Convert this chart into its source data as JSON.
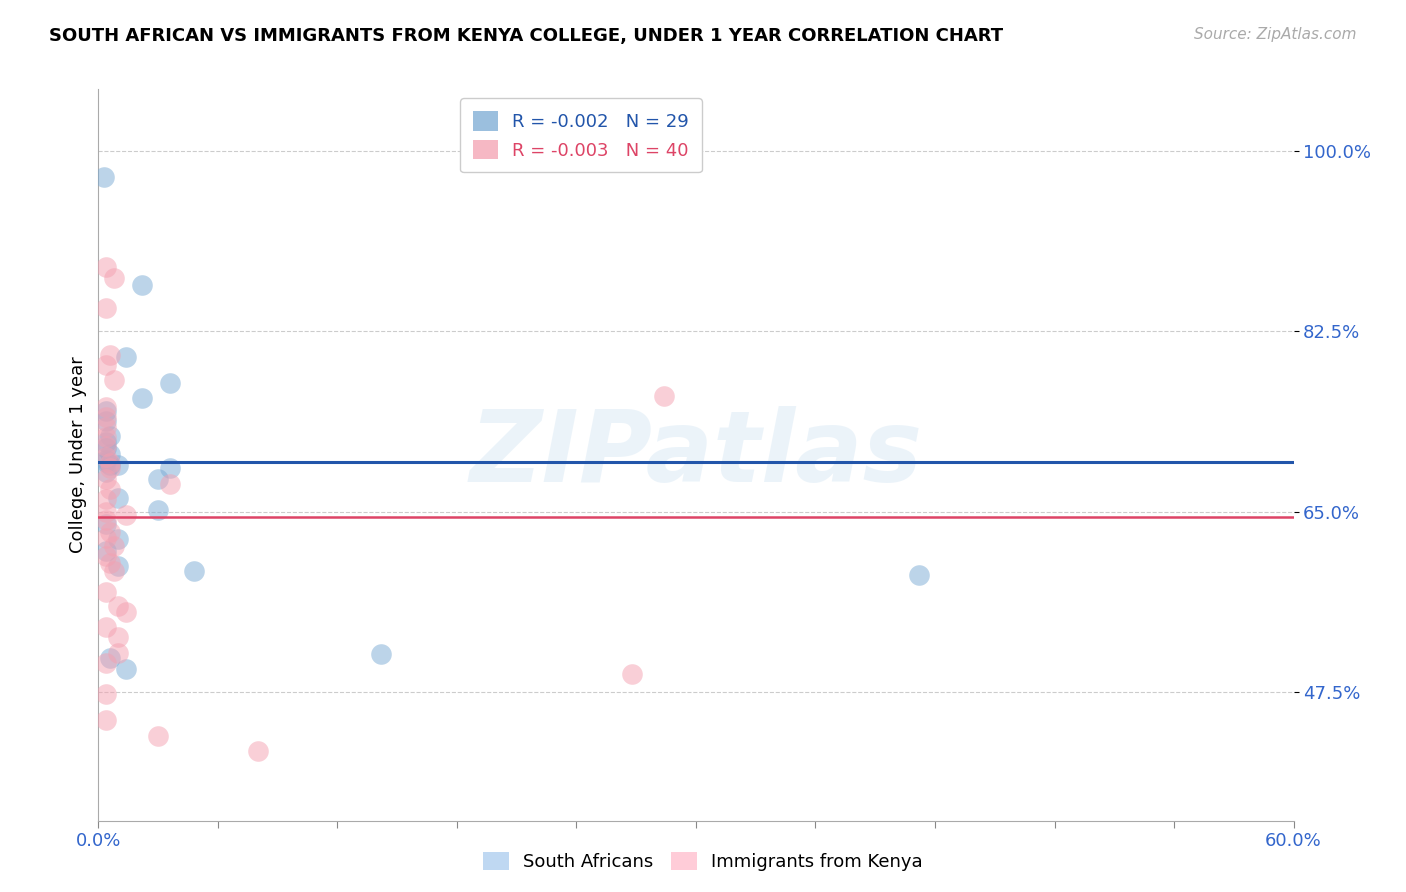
{
  "title": "SOUTH AFRICAN VS IMMIGRANTS FROM KENYA COLLEGE, UNDER 1 YEAR CORRELATION CHART",
  "source": "Source: ZipAtlas.com",
  "ylabel": "College, Under 1 year",
  "ytick_labels": [
    "100.0%",
    "82.5%",
    "65.0%",
    "47.5%"
  ],
  "ytick_values": [
    1.0,
    0.825,
    0.65,
    0.475
  ],
  "xlim": [
    0.0,
    0.6
  ],
  "ylim": [
    0.35,
    1.06
  ],
  "legend_entries": [
    {
      "label": "R = -0.002   N = 29",
      "color": "#7aaad4"
    },
    {
      "label": "R = -0.003   N = 40",
      "color": "#f4a0b0"
    }
  ],
  "legend_xlabel": [
    "South Africans",
    "Immigrants from Kenya"
  ],
  "blue_line_y": 0.698,
  "pink_line_y": 0.645,
  "blue_scatter": [
    [
      0.003,
      0.975
    ],
    [
      0.022,
      0.87
    ],
    [
      0.014,
      0.8
    ],
    [
      0.036,
      0.775
    ],
    [
      0.022,
      0.76
    ],
    [
      0.004,
      0.748
    ],
    [
      0.004,
      0.738
    ],
    [
      0.006,
      0.723
    ],
    [
      0.004,
      0.718
    ],
    [
      0.004,
      0.712
    ],
    [
      0.006,
      0.706
    ],
    [
      0.004,
      0.7
    ],
    [
      0.004,
      0.698
    ],
    [
      0.006,
      0.695
    ],
    [
      0.01,
      0.695
    ],
    [
      0.036,
      0.692
    ],
    [
      0.004,
      0.688
    ],
    [
      0.03,
      0.682
    ],
    [
      0.01,
      0.663
    ],
    [
      0.03,
      0.652
    ],
    [
      0.004,
      0.638
    ],
    [
      0.01,
      0.623
    ],
    [
      0.004,
      0.612
    ],
    [
      0.01,
      0.597
    ],
    [
      0.006,
      0.508
    ],
    [
      0.048,
      0.592
    ],
    [
      0.142,
      0.512
    ],
    [
      0.014,
      0.497
    ],
    [
      0.412,
      0.588
    ]
  ],
  "pink_scatter": [
    [
      0.004,
      0.887
    ],
    [
      0.008,
      0.877
    ],
    [
      0.004,
      0.848
    ],
    [
      0.006,
      0.802
    ],
    [
      0.004,
      0.792
    ],
    [
      0.008,
      0.778
    ],
    [
      0.284,
      0.762
    ],
    [
      0.004,
      0.752
    ],
    [
      0.004,
      0.742
    ],
    [
      0.004,
      0.732
    ],
    [
      0.004,
      0.722
    ],
    [
      0.004,
      0.714
    ],
    [
      0.004,
      0.703
    ],
    [
      0.006,
      0.697
    ],
    [
      0.006,
      0.692
    ],
    [
      0.004,
      0.682
    ],
    [
      0.036,
      0.677
    ],
    [
      0.006,
      0.672
    ],
    [
      0.004,
      0.662
    ],
    [
      0.004,
      0.65
    ],
    [
      0.014,
      0.647
    ],
    [
      0.004,
      0.642
    ],
    [
      0.006,
      0.63
    ],
    [
      0.004,
      0.624
    ],
    [
      0.008,
      0.617
    ],
    [
      0.004,
      0.607
    ],
    [
      0.006,
      0.6
    ],
    [
      0.008,
      0.592
    ],
    [
      0.004,
      0.572
    ],
    [
      0.01,
      0.558
    ],
    [
      0.014,
      0.553
    ],
    [
      0.004,
      0.538
    ],
    [
      0.01,
      0.528
    ],
    [
      0.01,
      0.513
    ],
    [
      0.004,
      0.503
    ],
    [
      0.268,
      0.492
    ],
    [
      0.004,
      0.473
    ],
    [
      0.004,
      0.448
    ],
    [
      0.03,
      0.432
    ],
    [
      0.08,
      0.418
    ]
  ],
  "blue_color": "#7aaad4",
  "pink_color": "#f4a0b0",
  "blue_line_color": "#2255aa",
  "pink_line_color": "#dd4466",
  "watermark": "ZIPatlas",
  "background_color": "#ffffff",
  "grid_color": "#cccccc"
}
